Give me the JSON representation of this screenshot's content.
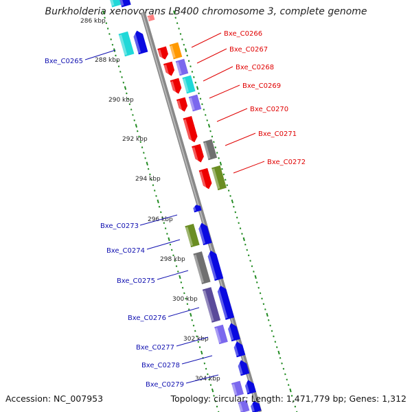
{
  "title": "Burkholderia xenovorans LB400 chromosome 3, complete genome",
  "accession_label": "Accession: NC_007953",
  "summary": "Topology: circular; Length: 1,471,779 bp; Genes: 1,312",
  "colors": {
    "backbone": "#888888",
    "tick": "#228b22",
    "forward_label": "#e00000",
    "reverse_label": "#1010b0",
    "red": "#ee0000",
    "blue": "#0a0ae0",
    "cyan": "#20d8d8",
    "orange": "#ff9900",
    "purple": "#7b68ee",
    "dark_purple": "#5a4a9a",
    "gray": "#707070",
    "olive": "#6b8e23",
    "pink": "#ff8080"
  },
  "kbp_ticks": [
    "286 kbp",
    "288 kbp",
    "290 kbp",
    "292 kbp",
    "294 kbp",
    "296 kbp",
    "298 kbp",
    "300 kbp",
    "302 kbp",
    "304 kbp"
  ],
  "forward_genes": [
    "Bxe_C0266",
    "Bxe_C0267",
    "Bxe_C0268",
    "Bxe_C0269",
    "Bxe_C0270",
    "Bxe_C0271",
    "Bxe_C0272"
  ],
  "reverse_genes": [
    "Bxe_C0265",
    "Bxe_C0273",
    "Bxe_C0274",
    "Bxe_C0275",
    "Bxe_C0276",
    "Bxe_C0277",
    "Bxe_C0278",
    "Bxe_C0279"
  ]
}
